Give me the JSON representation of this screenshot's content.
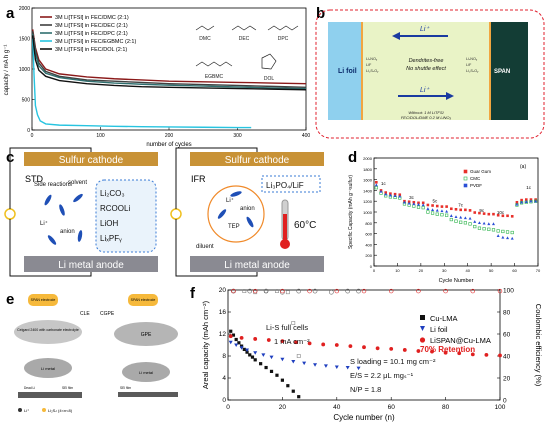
{
  "panels": {
    "a": {
      "letter": "a",
      "chart_data": {
        "type": "line",
        "xlabel": "number of cycles",
        "ylabel": "capacity / mA h g⁻¹",
        "xlim": [
          0,
          400
        ],
        "ylim": [
          0,
          2000
        ],
        "xticks": [
          "0",
          "100",
          "200",
          "300",
          "400"
        ],
        "yticks": [
          "0",
          "500",
          "1000",
          "1500",
          "2000"
        ],
        "grid": false,
        "legend_position": "top-left",
        "series": [
          {
            "name": "3M Li[TFSI] in FEC/DMC (2:1)",
            "color": "#8b1a1a",
            "x": [
              1,
              5,
              10,
              20,
              40,
              80,
              120,
              160,
              200,
              250,
              300,
              350,
              400
            ],
            "y": [
              1650,
              1350,
              1150,
              1000,
              920,
              870,
              840,
              820,
              800,
              790,
              780,
              770,
              760
            ]
          },
          {
            "name": "3M Li[TFSI] in FEC/DEC (2:1)",
            "color": "#404040",
            "x": [
              1,
              5,
              10,
              20,
              40,
              80,
              120,
              160,
              200,
              250,
              300,
              350,
              400
            ],
            "y": [
              1620,
              1300,
              1100,
              960,
              880,
              820,
              800,
              780,
              760,
              745,
              730,
              715,
              700
            ]
          },
          {
            "name": "3M Li[TFSI] in FEC/DPC (2:1)",
            "color": "#2f6f6f",
            "x": [
              1,
              5,
              10,
              20,
              40,
              80,
              120,
              160,
              200,
              250,
              300,
              350,
              400
            ],
            "y": [
              1580,
              1250,
              1050,
              930,
              860,
              800,
              770,
              750,
              735,
              720,
              705,
              690,
              680
            ]
          },
          {
            "name": "3M Li[TFSI] in FEC/EGBMC (2:1)",
            "color": "#27c4e0",
            "x": [
              1,
              3,
              5,
              8,
              12,
              20,
              40,
              80,
              120,
              160,
              200,
              250,
              300,
              320
            ],
            "y": [
              1500,
              900,
              400,
              250,
              150,
              100,
              80,
              70,
              60,
              55,
              50,
              45,
              40,
              40
            ]
          },
          {
            "name": "3M Li[TFSI] in FEC/DOL (2:1)",
            "color": "#111111",
            "x": [
              1,
              5,
              10,
              20,
              40,
              80,
              120,
              160,
              200,
              250,
              300,
              350,
              400
            ],
            "y": [
              1550,
              1150,
              980,
              880,
              810,
              760,
              730,
              710,
              700,
              690,
              680,
              670,
              660
            ]
          }
        ]
      },
      "structures": [
        "DMC",
        "DEC",
        "DPC",
        "EGBMC",
        "DOL"
      ]
    },
    "b": {
      "letter": "b",
      "li_ion": "Li⁺",
      "left_electrode": "Li foil",
      "right_electrode": "SPAN",
      "center_text_1": "Dendrites-free",
      "center_text_2": "No shuttle effect",
      "left_sei": [
        "LiₓNOᵧ",
        "LiF",
        "Li₂SₓOᵧ"
      ],
      "right_cei": [
        "LiₓNOᵧ",
        "LiF",
        "Li₂SₓOᵧ"
      ],
      "electrolyte_1": "Without: 1 M LiTFSI",
      "electrolyte_2": "FEC/DOL/DME  0.2 M LiNO₃"
    },
    "c": {
      "letter": "c",
      "left_tag": "STD",
      "right_tag": "IFR",
      "cathode": "Sulfur cathode",
      "anode": "Li metal anode",
      "left_labels": [
        "Side reactions",
        "solvent",
        "Li⁺",
        "anion"
      ],
      "sei_left": [
        "Li₂CO₃",
        "RCOOLi",
        "LiOH",
        "LiₓPFᵧ"
      ],
      "right_labels": [
        "Li⁺",
        "anion",
        "TEP",
        "diluent"
      ],
      "sei_right": "Li₃PO₄/LiF",
      "temperature": "60°C"
    },
    "d": {
      "letter": "d",
      "inner_tag": "(a)",
      "chart_data": {
        "type": "scatter",
        "xlabel": "Cycle Number",
        "ylabel": "Specific Capacity (mAh g⁻¹sulfur)",
        "xlim": [
          0,
          70
        ],
        "ylim": [
          0,
          2000
        ],
        "xticks": [
          "0",
          "10",
          "20",
          "30",
          "40",
          "50",
          "60",
          "70"
        ],
        "yticks": [
          "0",
          "200",
          "400",
          "600",
          "800",
          "1000",
          "1200",
          "1400",
          "1600",
          "1800",
          "2000"
        ],
        "rate_labels": [
          {
            "text": "1c",
            "x": 4,
            "y": 1500
          },
          {
            "text": "3c",
            "x": 16,
            "y": 1240
          },
          {
            "text": "5c",
            "x": 26,
            "y": 1180
          },
          {
            "text": "7c",
            "x": 37,
            "y": 1100
          },
          {
            "text": "9c",
            "x": 46,
            "y": 1000
          },
          {
            "text": "10c",
            "x": 54,
            "y": 960
          },
          {
            "text": "1c",
            "x": 66,
            "y": 1430
          }
        ],
        "legend_position": "top-right",
        "series": [
          {
            "name": "Guar Gum",
            "color": "#e8302a",
            "x": [
              1,
              3,
              5,
              7,
              9,
              11,
              13,
              15,
              17,
              19,
              21,
              23,
              25,
              27,
              29,
              31,
              33,
              35,
              37,
              39,
              41,
              43,
              45,
              47,
              49,
              51,
              53,
              55,
              57,
              59,
              61,
              63,
              65,
              67,
              69
            ],
            "y": [
              1550,
              1400,
              1360,
              1340,
              1330,
              1320,
              1200,
              1190,
              1180,
              1170,
              1170,
              1130,
              1120,
              1110,
              1100,
              1100,
              1060,
              1050,
              1040,
              1040,
              1030,
              990,
              980,
              970,
              960,
              960,
              940,
              930,
              930,
              920,
              1180,
              1220,
              1230,
              1230,
              1230
            ]
          },
          {
            "name": "CMC",
            "color": "#2bb34a",
            "x": [
              1,
              3,
              5,
              7,
              9,
              11,
              13,
              15,
              17,
              19,
              21,
              23,
              25,
              27,
              29,
              31,
              33,
              35,
              37,
              39,
              41,
              43,
              45,
              47,
              49,
              51,
              53,
              55,
              57,
              59,
              61,
              63,
              65,
              67,
              69
            ],
            "y": [
              1450,
              1350,
              1300,
              1280,
              1270,
              1260,
              1150,
              1130,
              1110,
              1090,
              1080,
              1000,
              980,
              960,
              950,
              940,
              860,
              830,
              810,
              800,
              780,
              730,
              700,
              690,
              680,
              670,
              650,
              640,
              630,
              620,
              1130,
              1170,
              1180,
              1190,
              1200
            ]
          },
          {
            "name": "PVDF",
            "color": "#2a4fd6",
            "x": [
              1,
              3,
              5,
              7,
              9,
              11,
              13,
              15,
              17,
              19,
              21,
              23,
              25,
              27,
              29,
              31,
              33,
              35,
              37,
              39,
              41,
              43,
              45,
              47,
              49,
              51,
              53,
              55,
              57,
              59,
              61,
              63,
              65,
              67,
              69
            ],
            "y": [
              1500,
              1380,
              1330,
              1310,
              1300,
              1290,
              1180,
              1160,
              1150,
              1140,
              1130,
              1060,
              1040,
              1030,
              1020,
              1010,
              930,
              910,
              900,
              890,
              880,
              820,
              800,
              790,
              780,
              780,
              560,
              530,
              520,
              510,
              1140,
              1180,
              1190,
              1200,
              1200
            ]
          }
        ]
      }
    },
    "e": {
      "letter": "e",
      "left_tag": "CLE",
      "right_tag": "CGPE",
      "electrode": "SPAN electrode",
      "separator": "Celgard 2400 with carbonate electrolyte",
      "gpe": "GPE",
      "anode": "Li metal",
      "left_film": "SEI film",
      "left_note": "Dead Li",
      "legend_li": "Li⁺",
      "legend_ps": "Li₂Sₙ (4<n<8)"
    },
    "f": {
      "letter": "f",
      "chart_data": {
        "type": "scatter",
        "xlabel": "Cycle number (n)",
        "ylabel": "Areal capacity (mAh cm⁻²)",
        "y2label": "Coulombic efficiency (%)",
        "xlim": [
          0,
          100
        ],
        "ylim": [
          0,
          20
        ],
        "y2lim": [
          0,
          100
        ],
        "xticks": [
          "0",
          "20",
          "40",
          "60",
          "80",
          "100"
        ],
        "yticks": [
          "0",
          "4",
          "8",
          "12",
          "16",
          "20"
        ],
        "y2ticks": [
          "0",
          "20",
          "40",
          "60",
          "80",
          "100"
        ],
        "legend_position": "center",
        "annotations": [
          "Li-S full cells",
          "1 mA cm⁻²",
          "S loading = 10.1 mg cm⁻²",
          "E/S = 2.2 μL mgₛ⁻¹",
          "N/P = 1.8",
          "70% Retention"
        ],
        "series": [
          {
            "name": "Cu-LMA",
            "color": "#111111",
            "x": [
              1,
              2,
              3,
              4,
              5,
              6,
              7,
              8,
              9,
              10,
              12,
              14,
              16,
              18,
              20,
              22,
              24,
              26
            ],
            "y": [
              12.5,
              11.8,
              11.0,
              10.4,
              9.8,
              9.2,
              8.7,
              8.2,
              7.8,
              7.3,
              6.6,
              5.9,
              5.2,
              4.5,
              3.6,
              2.6,
              1.6,
              0.6
            ]
          },
          {
            "name": "Li foil",
            "color": "#1f3fbf",
            "x": [
              1,
              3,
              5,
              7,
              10,
              13,
              16,
              20,
              24,
              28,
              32,
              36,
              40,
              44,
              48
            ],
            "y": [
              10.5,
              10.0,
              9.5,
              9.1,
              8.6,
              8.2,
              7.8,
              7.4,
              7.0,
              6.7,
              6.4,
              6.2,
              6.0,
              5.9,
              5.8
            ]
          },
          {
            "name": "LiSPAN@Cu-LMA",
            "color": "#e02020",
            "x": [
              1,
              5,
              10,
              15,
              20,
              25,
              30,
              35,
              40,
              45,
              50,
              55,
              60,
              65,
              70,
              75,
              80,
              85,
              90,
              95,
              100
            ],
            "y": [
              11.6,
              11.3,
              11.1,
              10.9,
              10.7,
              10.5,
              10.3,
              10.1,
              10.0,
              9.8,
              9.6,
              9.4,
              9.3,
              9.1,
              8.9,
              8.8,
              8.6,
              8.5,
              8.3,
              8.2,
              8.1
            ]
          }
        ],
        "ce_series": [
          {
            "name": "Cu-LMA CE",
            "color": "#888888",
            "x": [
              2,
              6,
              10,
              14,
              18,
              22,
              24,
              26
            ],
            "y": [
              99,
              99,
              98,
              99,
              99,
              98,
              70,
              40
            ]
          },
          {
            "name": "Li foil CE",
            "color": "#666666",
            "x": [
              2,
              8,
              14,
              20,
              26,
              32,
              38,
              44,
              48
            ],
            "y": [
              99,
              99,
              99,
              98,
              99,
              99,
              98,
              99,
              99
            ]
          },
          {
            "name": "LiSPAN@Cu-LMA CE",
            "color": "#e02020",
            "x": [
              2,
              10,
              20,
              30,
              40,
              50,
              60,
              70,
              80,
              90,
              100
            ],
            "y": [
              99,
              99,
              99,
              99,
              99,
              99,
              99,
              99,
              99,
              99,
              99
            ]
          }
        ]
      }
    }
  }
}
